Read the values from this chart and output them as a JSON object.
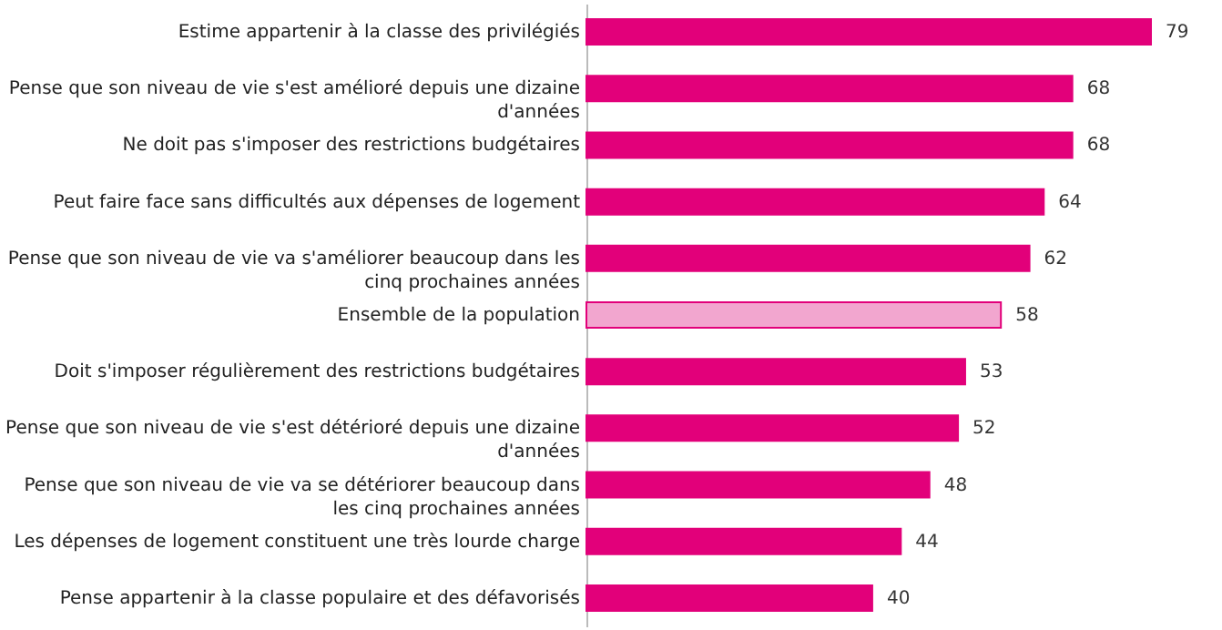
{
  "chart_data": {
    "type": "bar",
    "orientation": "horizontal",
    "data_labels": true,
    "categories": [
      "Estime appartenir à la classe des privilégiés",
      "Pense que son niveau de vie s'est amélioré depuis une dizaine d'années",
      "Ne doit pas s'imposer des restrictions budgétaires",
      "Peut faire face sans difficultés aux dépenses de logement",
      "Pense que son niveau de vie va s'améliorer beaucoup dans les cinq prochaines années",
      "Ensemble de la population",
      "Doit s'imposer régulièrement des restrictions budgétaires",
      "Pense que son niveau de vie s'est détérioré depuis une dizaine d'années",
      "Pense que son niveau de vie va se détériorer beaucoup dans les cinq prochaines années",
      "Les dépenses de logement constituent une très lourde charge",
      "Pense appartenir à la classe populaire et des défavorisés"
    ],
    "values": [
      79,
      68,
      68,
      64,
      62,
      58,
      53,
      52,
      48,
      44,
      40
    ],
    "colors": [
      "#e2007a",
      "#e2007a",
      "#e2007a",
      "#e2007a",
      "#e2007a",
      "#f2a6cf",
      "#e2007a",
      "#e2007a",
      "#e2007a",
      "#e2007a",
      "#e2007a"
    ]
  }
}
